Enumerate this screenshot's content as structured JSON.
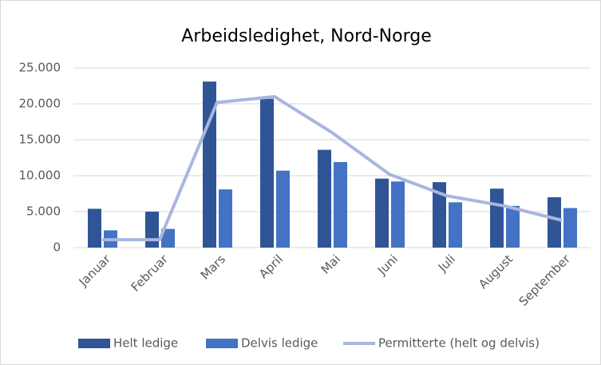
{
  "chart_data": {
    "type": "bar_line",
    "title": "Arbeidsledighet, Nord-Norge",
    "categories": [
      "Januar",
      "Februar",
      "Mars",
      "April",
      "Mai",
      "Juni",
      "Juli",
      "August",
      "September"
    ],
    "series": [
      {
        "name": "Helt ledige",
        "type": "bar",
        "color": "#2f5597",
        "values": [
          5400,
          5000,
          23100,
          20700,
          13600,
          9600,
          9100,
          8200,
          7000
        ]
      },
      {
        "name": "Delvis ledige",
        "type": "bar",
        "color": "#4472c4",
        "values": [
          2400,
          2600,
          8100,
          10700,
          11900,
          9200,
          6300,
          5800,
          5500
        ]
      },
      {
        "name": "Permitterte (helt og delvis)",
        "type": "line",
        "color": "#a9b6df",
        "values": [
          1100,
          1100,
          20200,
          21000,
          16000,
          10200,
          7200,
          5800,
          3800
        ]
      }
    ],
    "ylim": [
      0,
      25000
    ],
    "yticks": [
      0,
      {
        "value": 5000,
        "label": "5.000"
      },
      {
        "value": 10000,
        "label": "10.000"
      },
      {
        "value": 15000,
        "label": "15.000"
      },
      {
        "value": 20000,
        "label": "20.000"
      },
      {
        "value": 25000,
        "label": "25.000"
      }
    ],
    "grid": true,
    "legend": "bottom"
  }
}
